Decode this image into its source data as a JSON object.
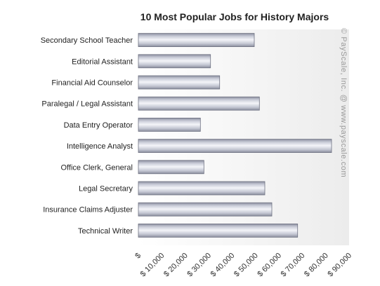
{
  "chart_data": {
    "type": "bar",
    "orientation": "horizontal",
    "title": "10 Most Popular Jobs for History Majors",
    "xlabel": "",
    "ylabel": "",
    "categories": [
      "Secondary School Teacher",
      "Editorial Assistant",
      "Financial Aid Counselor",
      "Paralegal / Legal Assistant",
      "Data Entry Operator",
      "Intelligence Analyst",
      "Office Clerk, General",
      "Legal Secretary",
      "Insurance Claims Adjuster",
      "Technical Writer"
    ],
    "values": [
      49500,
      30800,
      34700,
      51700,
      26500,
      82500,
      28000,
      54000,
      57000,
      68000
    ],
    "xlim": [
      0,
      90000
    ],
    "x_ticks": [
      0,
      10000,
      20000,
      30000,
      40000,
      50000,
      60000,
      70000,
      80000,
      90000
    ],
    "x_tick_labels": [
      "$",
      "$ 10,000",
      "$ 20,000",
      "$ 30,000",
      "$ 40,000",
      "$ 50,000",
      "$ 60,000",
      "$ 70,000",
      "$ 80,000",
      "$ 90,000"
    ],
    "grid": false,
    "legend": "none",
    "colors": {
      "bar_light": "#f4f5f9",
      "bar_mid": "#c9ccd8",
      "bar_dark": "#8d90a0",
      "bar_stroke": "#6f7282",
      "plot_bg": "#f5f5f5",
      "watermark": "#9a9a9a"
    }
  },
  "watermark": "© PayScale, Inc. @ www.payscale.com"
}
